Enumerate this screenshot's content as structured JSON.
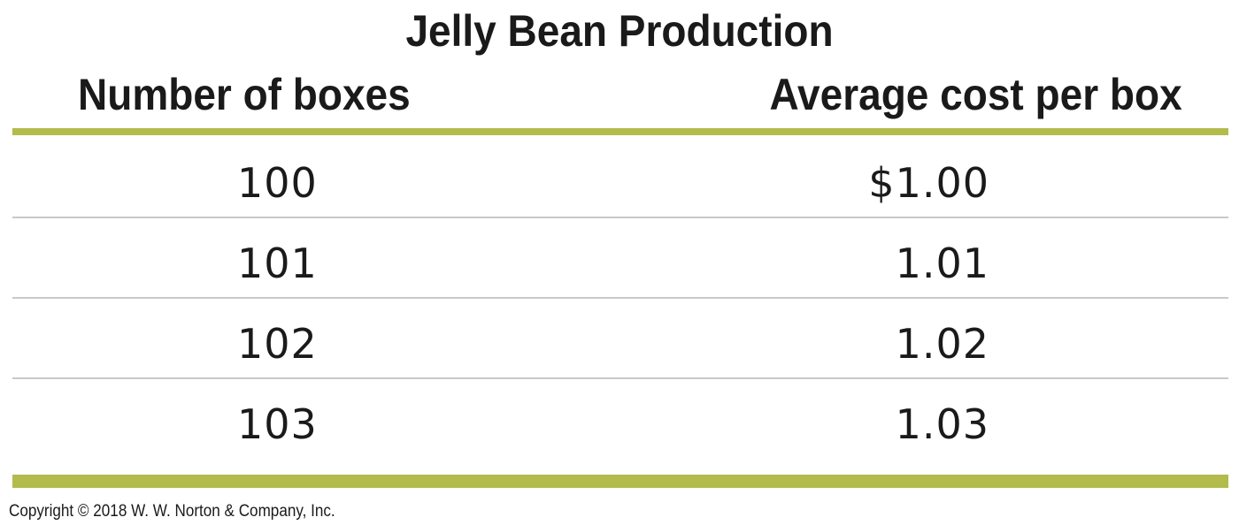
{
  "table": {
    "title": "Jelly Bean Production",
    "headers": {
      "quantity": "Number of boxes",
      "cost": "Average cost per box"
    },
    "rows": [
      {
        "quantity": "100",
        "cost": "$1.00"
      },
      {
        "quantity": "101",
        "cost": "1.01"
      },
      {
        "quantity": "102",
        "cost": "1.02"
      },
      {
        "quantity": "103",
        "cost": "1.03"
      }
    ]
  },
  "footer": {
    "copyright": "Copyright © 2018 W. W. Norton & Company, Inc."
  },
  "colors": {
    "accent_rule": "#b2bb4c",
    "row_divider": "#c8c8c8",
    "text": "#1a1a1a"
  }
}
